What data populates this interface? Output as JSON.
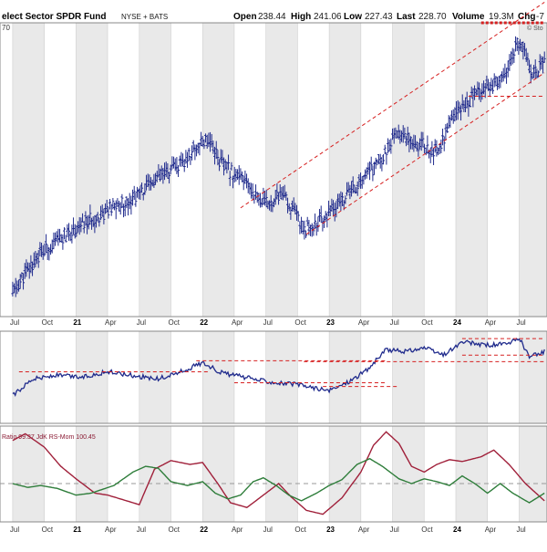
{
  "header": {
    "fund_name": "elect Sector SPDR Fund",
    "exchange": "NYSE + BATS",
    "open_label": "Open",
    "open_value": "238.44",
    "high_label": "High",
    "high_value": "241.06",
    "low_label": "Low",
    "low_value": "227.43",
    "last_label": "Last",
    "last_value": "228.70",
    "volume_label": "Volume",
    "volume_value": "19.3M",
    "chg_label": "Chg",
    "chg_value": "-7"
  },
  "watermark": "© Sto",
  "price_axis_fragment": "70",
  "indicator_label": "Ratio 99.37 JdK RS-Mom 100.45",
  "colors": {
    "price": "#1f2a8c",
    "ratio": "#1f2a8c",
    "channel": "#d62020",
    "rs_ratio": "#a0203a",
    "rs_mom": "#2e7d3a",
    "shade": "#e9e9e9"
  },
  "chart_data": [
    {
      "type": "line",
      "style": "ohlc-bars",
      "series_name": "price",
      "x_axis_ticks": [
        "Jul",
        "Oct",
        "21",
        "Apr",
        "Jul",
        "Oct",
        "22",
        "Apr",
        "Jul",
        "Oct",
        "23",
        "Apr",
        "Jul",
        "Oct",
        "24",
        "Apr",
        "Jul"
      ],
      "anchors": [
        [
          2020.5,
          0.08
        ],
        [
          2020.7,
          0.21
        ],
        [
          2020.9,
          0.27
        ],
        [
          2021.0,
          0.3
        ],
        [
          2021.25,
          0.36
        ],
        [
          2021.45,
          0.4
        ],
        [
          2021.65,
          0.47
        ],
        [
          2021.85,
          0.52
        ],
        [
          2021.95,
          0.58
        ],
        [
          2022.05,
          0.61
        ],
        [
          2022.15,
          0.52
        ],
        [
          2022.35,
          0.45
        ],
        [
          2022.5,
          0.38
        ],
        [
          2022.62,
          0.42
        ],
        [
          2022.8,
          0.3
        ],
        [
          2022.88,
          0.31
        ],
        [
          2023.0,
          0.35
        ],
        [
          2023.2,
          0.44
        ],
        [
          2023.4,
          0.53
        ],
        [
          2023.55,
          0.63
        ],
        [
          2023.75,
          0.58
        ],
        [
          2023.85,
          0.56
        ],
        [
          2024.0,
          0.69
        ],
        [
          2024.25,
          0.8
        ],
        [
          2024.35,
          0.79
        ],
        [
          2024.48,
          0.92
        ],
        [
          2024.56,
          0.9
        ],
        [
          2024.6,
          0.83
        ],
        [
          2024.7,
          0.86
        ]
      ],
      "channel_lines": [
        {
          "from": [
            2022.3,
            0.37
          ],
          "to": [
            2024.7,
            1.07
          ]
        },
        {
          "from": [
            2022.82,
            0.28
          ],
          "to": [
            2024.7,
            0.83
          ]
        }
      ],
      "horizontal_levels": [
        {
          "from": 2024.2,
          "to": 2024.7,
          "y": 1.0,
          "style": "dotted"
        },
        {
          "from": 2024.1,
          "to": 2024.7,
          "y": 0.75,
          "style": "dashed"
        }
      ]
    },
    {
      "type": "line",
      "series_name": "ratio",
      "anchors": [
        [
          2020.5,
          0.3
        ],
        [
          2020.65,
          0.48
        ],
        [
          2020.85,
          0.52
        ],
        [
          2021.05,
          0.5
        ],
        [
          2021.25,
          0.56
        ],
        [
          2021.45,
          0.52
        ],
        [
          2021.65,
          0.48
        ],
        [
          2021.85,
          0.57
        ],
        [
          2022.0,
          0.66
        ],
        [
          2022.15,
          0.55
        ],
        [
          2022.4,
          0.48
        ],
        [
          2022.6,
          0.44
        ],
        [
          2022.75,
          0.42
        ],
        [
          2022.9,
          0.38
        ],
        [
          2023.0,
          0.35
        ],
        [
          2023.15,
          0.45
        ],
        [
          2023.3,
          0.58
        ],
        [
          2023.45,
          0.8
        ],
        [
          2023.6,
          0.78
        ],
        [
          2023.75,
          0.82
        ],
        [
          2023.9,
          0.74
        ],
        [
          2024.05,
          0.88
        ],
        [
          2024.25,
          0.85
        ],
        [
          2024.42,
          0.86
        ],
        [
          2024.5,
          0.93
        ],
        [
          2024.58,
          0.72
        ],
        [
          2024.7,
          0.78
        ]
      ],
      "horizontal_levels": [
        {
          "from": 2020.55,
          "to": 2022.05,
          "y": 0.56
        },
        {
          "from": 2021.95,
          "to": 2023.45,
          "y": 0.68
        },
        {
          "from": 2022.25,
          "to": 2023.45,
          "y": 0.44
        },
        {
          "from": 2022.95,
          "to": 2023.55,
          "y": 0.4
        },
        {
          "from": 2022.8,
          "to": 2024.7,
          "y": 0.67
        },
        {
          "from": 2024.05,
          "to": 2024.7,
          "y": 0.92
        },
        {
          "from": 2024.05,
          "to": 2024.7,
          "y": 0.74
        }
      ]
    },
    {
      "type": "line",
      "series": [
        {
          "name": "Ratio",
          "anchors": [
            [
              2020.5,
              0.85
            ],
            [
              2020.6,
              0.92
            ],
            [
              2020.75,
              0.78
            ],
            [
              2020.88,
              0.58
            ],
            [
              2021.0,
              0.45
            ],
            [
              2021.15,
              0.3
            ],
            [
              2021.25,
              0.28
            ],
            [
              2021.4,
              0.22
            ],
            [
              2021.5,
              0.18
            ],
            [
              2021.62,
              0.55
            ],
            [
              2021.75,
              0.64
            ],
            [
              2021.9,
              0.6
            ],
            [
              2022.0,
              0.62
            ],
            [
              2022.12,
              0.4
            ],
            [
              2022.22,
              0.2
            ],
            [
              2022.35,
              0.15
            ],
            [
              2022.5,
              0.3
            ],
            [
              2022.6,
              0.4
            ],
            [
              2022.7,
              0.26
            ],
            [
              2022.82,
              0.12
            ],
            [
              2022.95,
              0.08
            ],
            [
              2023.1,
              0.25
            ],
            [
              2023.25,
              0.52
            ],
            [
              2023.35,
              0.8
            ],
            [
              2023.45,
              0.94
            ],
            [
              2023.55,
              0.82
            ],
            [
              2023.65,
              0.58
            ],
            [
              2023.75,
              0.52
            ],
            [
              2023.85,
              0.6
            ],
            [
              2023.95,
              0.65
            ],
            [
              2024.05,
              0.63
            ],
            [
              2024.2,
              0.68
            ],
            [
              2024.3,
              0.75
            ],
            [
              2024.42,
              0.6
            ],
            [
              2024.55,
              0.4
            ],
            [
              2024.7,
              0.22
            ]
          ]
        },
        {
          "name": "JdK RS-Mom",
          "anchors": [
            [
              2020.5,
              0.4
            ],
            [
              2020.62,
              0.36
            ],
            [
              2020.72,
              0.38
            ],
            [
              2020.85,
              0.35
            ],
            [
              2021.0,
              0.28
            ],
            [
              2021.12,
              0.3
            ],
            [
              2021.3,
              0.38
            ],
            [
              2021.45,
              0.52
            ],
            [
              2021.55,
              0.58
            ],
            [
              2021.65,
              0.56
            ],
            [
              2021.75,
              0.42
            ],
            [
              2021.88,
              0.38
            ],
            [
              2022.0,
              0.42
            ],
            [
              2022.1,
              0.3
            ],
            [
              2022.2,
              0.24
            ],
            [
              2022.3,
              0.28
            ],
            [
              2022.4,
              0.42
            ],
            [
              2022.48,
              0.46
            ],
            [
              2022.58,
              0.38
            ],
            [
              2022.68,
              0.28
            ],
            [
              2022.78,
              0.22
            ],
            [
              2022.9,
              0.3
            ],
            [
              2023.0,
              0.38
            ],
            [
              2023.1,
              0.44
            ],
            [
              2023.22,
              0.6
            ],
            [
              2023.32,
              0.66
            ],
            [
              2023.42,
              0.58
            ],
            [
              2023.55,
              0.45
            ],
            [
              2023.65,
              0.4
            ],
            [
              2023.75,
              0.45
            ],
            [
              2023.85,
              0.42
            ],
            [
              2023.95,
              0.38
            ],
            [
              2024.05,
              0.48
            ],
            [
              2024.15,
              0.4
            ],
            [
              2024.25,
              0.3
            ],
            [
              2024.35,
              0.4
            ],
            [
              2024.45,
              0.3
            ],
            [
              2024.58,
              0.2
            ],
            [
              2024.7,
              0.3
            ]
          ]
        }
      ],
      "reference_line": 0.4
    }
  ]
}
